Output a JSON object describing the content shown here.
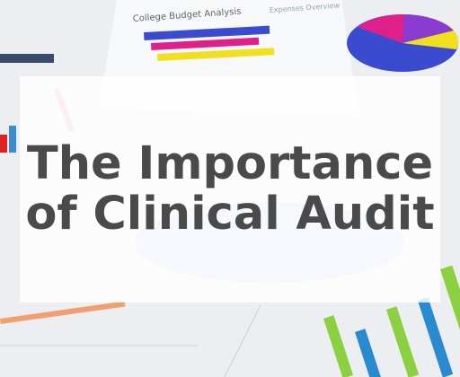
{
  "title": {
    "lines": [
      "The Importance",
      "of Clinical Audit"
    ]
  },
  "background": {
    "labels": [
      "College Budget Analysis",
      "Expenses Overview"
    ]
  }
}
